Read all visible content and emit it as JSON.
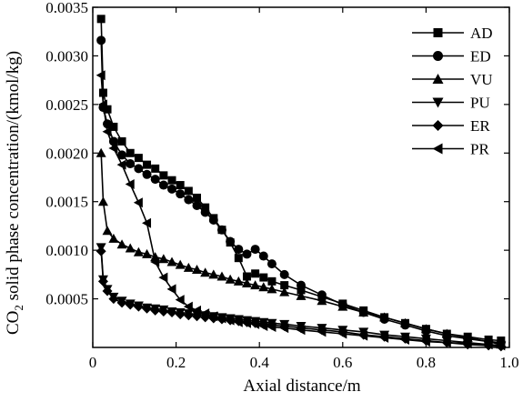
{
  "chart_data": {
    "type": "line",
    "xlabel": "Axial distance/m",
    "ylabel_prefix": "CO",
    "ylabel_sub": "2",
    "ylabel_rest": " solid phase concentration/(kmol/kg)",
    "xlim": [
      0,
      1.0
    ],
    "ylim": [
      0,
      0.0035
    ],
    "xticks": [
      "0",
      "0.2",
      "0.4",
      "0.6",
      "0.8",
      "1.0"
    ],
    "xtick_values": [
      0,
      0.2,
      0.4,
      0.6,
      0.8,
      1.0
    ],
    "yticks": [
      "0.0005",
      "0.0010",
      "0.0015",
      "0.0020",
      "0.0025",
      "0.0030",
      "0.0035"
    ],
    "ytick_values": [
      0.0005,
      0.001,
      0.0015,
      0.002,
      0.0025,
      0.003,
      0.0035
    ],
    "grid": false,
    "legend_position": "top-right",
    "series": [
      {
        "name": "AD",
        "marker": "square",
        "x": [
          0.02,
          0.025,
          0.035,
          0.05,
          0.07,
          0.09,
          0.11,
          0.13,
          0.15,
          0.17,
          0.19,
          0.21,
          0.23,
          0.25,
          0.27,
          0.29,
          0.31,
          0.33,
          0.35,
          0.37,
          0.39,
          0.41,
          0.43,
          0.46,
          0.5,
          0.55,
          0.6,
          0.65,
          0.7,
          0.75,
          0.8,
          0.85,
          0.9,
          0.95,
          0.98
        ],
        "y": [
          0.00338,
          0.00262,
          0.00245,
          0.00227,
          0.00212,
          0.002,
          0.00195,
          0.00188,
          0.00184,
          0.00177,
          0.00172,
          0.00167,
          0.00161,
          0.00154,
          0.00144,
          0.00133,
          0.00121,
          0.00108,
          0.00092,
          0.00073,
          0.00076,
          0.00072,
          0.00068,
          0.00064,
          0.00059,
          0.00052,
          0.00045,
          0.00038,
          0.00031,
          0.00025,
          0.00019,
          0.00014,
          0.00011,
          8e-05,
          7e-05
        ]
      },
      {
        "name": "ED",
        "marker": "circle",
        "x": [
          0.02,
          0.025,
          0.035,
          0.05,
          0.07,
          0.09,
          0.11,
          0.13,
          0.15,
          0.17,
          0.19,
          0.21,
          0.23,
          0.25,
          0.27,
          0.29,
          0.31,
          0.33,
          0.35,
          0.37,
          0.39,
          0.41,
          0.43,
          0.46,
          0.5,
          0.55,
          0.6,
          0.65,
          0.7,
          0.75,
          0.8,
          0.85,
          0.9,
          0.95,
          0.98
        ],
        "y": [
          0.00316,
          0.00247,
          0.0023,
          0.00212,
          0.00198,
          0.00189,
          0.00184,
          0.00178,
          0.00173,
          0.00167,
          0.00163,
          0.00158,
          0.00152,
          0.00146,
          0.00139,
          0.00131,
          0.00121,
          0.00109,
          0.00101,
          0.00096,
          0.00101,
          0.00094,
          0.00086,
          0.00075,
          0.00064,
          0.00054,
          0.00044,
          0.00036,
          0.00029,
          0.00023,
          0.00017,
          0.00012,
          9e-05,
          6e-05,
          5e-05
        ]
      },
      {
        "name": "VU",
        "marker": "triangle-up",
        "x": [
          0.02,
          0.025,
          0.035,
          0.05,
          0.07,
          0.09,
          0.11,
          0.13,
          0.15,
          0.17,
          0.19,
          0.21,
          0.23,
          0.25,
          0.27,
          0.29,
          0.31,
          0.33,
          0.35,
          0.37,
          0.39,
          0.41,
          0.43,
          0.46,
          0.5,
          0.55,
          0.6,
          0.65,
          0.7,
          0.75,
          0.8,
          0.85,
          0.9,
          0.95,
          0.98
        ],
        "y": [
          0.002,
          0.0015,
          0.0012,
          0.00112,
          0.00106,
          0.00102,
          0.00098,
          0.00096,
          0.00093,
          0.00091,
          0.00088,
          0.00085,
          0.00082,
          0.0008,
          0.00077,
          0.00075,
          0.00073,
          0.0007,
          0.00068,
          0.00066,
          0.00064,
          0.00062,
          0.0006,
          0.00057,
          0.00053,
          0.00048,
          0.00042,
          0.00036,
          0.00031,
          0.00025,
          0.00019,
          0.00014,
          0.0001,
          6e-05,
          3e-05
        ]
      },
      {
        "name": "PU",
        "marker": "triangle-down",
        "x": [
          0.02,
          0.025,
          0.035,
          0.05,
          0.07,
          0.09,
          0.11,
          0.13,
          0.15,
          0.17,
          0.19,
          0.21,
          0.23,
          0.25,
          0.27,
          0.29,
          0.31,
          0.33,
          0.35,
          0.37,
          0.39,
          0.41,
          0.43,
          0.46,
          0.5,
          0.55,
          0.6,
          0.65,
          0.7,
          0.75,
          0.8,
          0.85,
          0.9,
          0.95,
          0.98
        ],
        "y": [
          0.00103,
          0.0007,
          0.0006,
          0.00052,
          0.00048,
          0.00045,
          0.00043,
          0.00041,
          0.0004,
          0.00039,
          0.00037,
          0.00036,
          0.00035,
          0.00034,
          0.00033,
          0.00032,
          0.00031,
          0.0003,
          0.00029,
          0.00028,
          0.00027,
          0.00026,
          0.00025,
          0.00024,
          0.00022,
          0.0002,
          0.00018,
          0.00016,
          0.00013,
          0.00011,
          9e-05,
          7e-05,
          5e-05,
          3e-05,
          2e-05
        ]
      },
      {
        "name": "ER",
        "marker": "diamond",
        "x": [
          0.02,
          0.025,
          0.035,
          0.05,
          0.07,
          0.09,
          0.11,
          0.13,
          0.15,
          0.17,
          0.19,
          0.21,
          0.23,
          0.25,
          0.27,
          0.29,
          0.31,
          0.33,
          0.35,
          0.37,
          0.39,
          0.41,
          0.43,
          0.46,
          0.5,
          0.55,
          0.6,
          0.65,
          0.7,
          0.75,
          0.8,
          0.85,
          0.9,
          0.95,
          0.98
        ],
        "y": [
          0.00099,
          0.00068,
          0.00058,
          0.0005,
          0.00046,
          0.00044,
          0.00042,
          0.0004,
          0.00038,
          0.00037,
          0.00036,
          0.00034,
          0.00033,
          0.00032,
          0.00031,
          0.0003,
          0.00029,
          0.00028,
          0.00027,
          0.00026,
          0.00025,
          0.00024,
          0.00023,
          0.00022,
          0.0002,
          0.00018,
          0.00016,
          0.00013,
          0.00011,
          9e-05,
          7e-05,
          5e-05,
          3e-05,
          2e-05,
          1e-05
        ]
      },
      {
        "name": "PR",
        "marker": "triangle-left",
        "x": [
          0.02,
          0.025,
          0.035,
          0.05,
          0.07,
          0.09,
          0.11,
          0.13,
          0.15,
          0.17,
          0.19,
          0.21,
          0.23,
          0.25,
          0.27,
          0.29,
          0.31,
          0.33,
          0.35,
          0.37,
          0.39,
          0.41,
          0.43,
          0.46,
          0.5,
          0.55,
          0.6,
          0.65,
          0.7,
          0.75,
          0.8,
          0.85,
          0.9,
          0.95,
          0.98
        ],
        "y": [
          0.0028,
          0.0025,
          0.00222,
          0.00205,
          0.00188,
          0.00168,
          0.00149,
          0.00128,
          0.00088,
          0.00072,
          0.0006,
          0.00049,
          0.00042,
          0.00038,
          0.00035,
          0.00032,
          0.0003,
          0.00028,
          0.00026,
          0.00025,
          0.00024,
          0.00022,
          0.00021,
          0.0002,
          0.00018,
          0.00016,
          0.00014,
          0.00012,
          0.0001,
          8e-05,
          6e-05,
          5e-05,
          4e-05,
          3e-05,
          2e-05
        ]
      }
    ]
  }
}
